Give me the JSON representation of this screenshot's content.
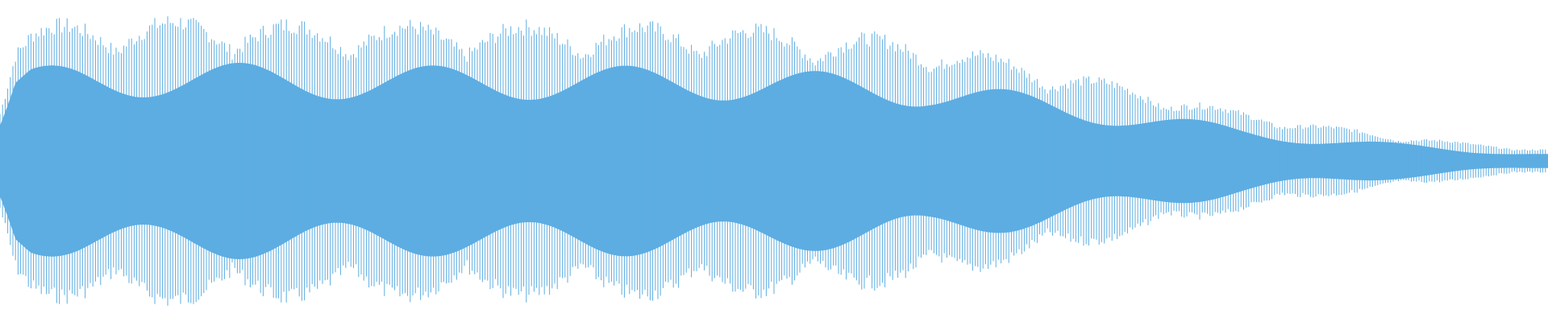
{
  "waveform": {
    "color": "#5dade2",
    "background": "#ffffff",
    "envelope": {
      "description_points": [
        [
          0.0,
          0.42
        ],
        [
          0.01,
          0.84
        ],
        [
          0.02,
          0.92
        ],
        [
          0.05,
          0.95
        ],
        [
          0.1,
          0.97
        ],
        [
          0.15,
          0.96
        ],
        [
          0.2,
          0.94
        ],
        [
          0.3,
          0.93
        ],
        [
          0.4,
          0.93
        ],
        [
          0.45,
          0.93
        ],
        [
          0.5,
          0.9
        ],
        [
          0.55,
          0.86
        ],
        [
          0.6,
          0.82
        ],
        [
          0.65,
          0.7
        ],
        [
          0.7,
          0.58
        ],
        [
          0.75,
          0.46
        ],
        [
          0.8,
          0.34
        ],
        [
          0.85,
          0.25
        ],
        [
          0.9,
          0.18
        ],
        [
          0.95,
          0.12
        ],
        [
          1.0,
          0.08
        ]
      ]
    }
  }
}
